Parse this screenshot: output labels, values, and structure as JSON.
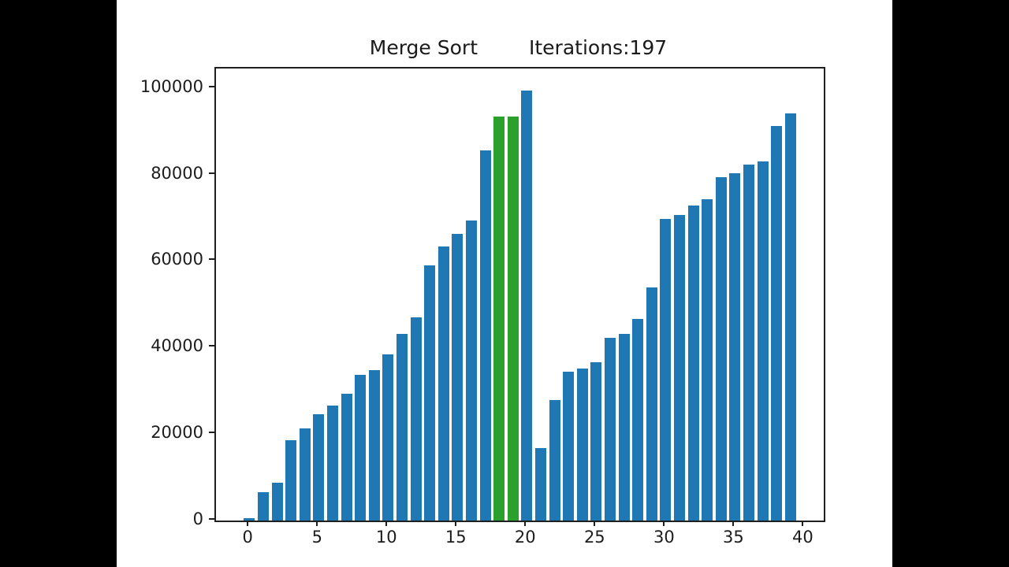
{
  "window": {
    "background_color": "#000000",
    "figure_background_color": "#ffffff"
  },
  "chart_data": {
    "type": "bar",
    "title": "Merge Sort",
    "iterations_label": "Iterations:197",
    "xlabel": "",
    "ylabel": "",
    "x": [
      0,
      1,
      2,
      3,
      4,
      5,
      6,
      7,
      8,
      9,
      10,
      11,
      12,
      13,
      14,
      15,
      16,
      17,
      18,
      19,
      20,
      21,
      22,
      23,
      24,
      25,
      26,
      27,
      28,
      29,
      30,
      31,
      32,
      33,
      34,
      35,
      36,
      37,
      38,
      39
    ],
    "values": [
      500,
      6500,
      8700,
      18600,
      21300,
      24600,
      26600,
      29300,
      33700,
      34800,
      38400,
      43100,
      47000,
      59000,
      63400,
      66300,
      69400,
      85600,
      93400,
      93400,
      99500,
      16800,
      27900,
      34400,
      35200,
      36600,
      42300,
      43200,
      46600,
      53900,
      69800,
      70700,
      72900,
      74300,
      79400,
      80300,
      82300,
      83100,
      91300,
      94200
    ],
    "bar_color": "#1f77b4",
    "highlight_color": "#2ca02c",
    "highlighted_indices": [
      18,
      19
    ],
    "xticks": [
      0,
      5,
      10,
      15,
      20,
      25,
      30,
      35,
      40
    ],
    "yticks": [
      0,
      20000,
      40000,
      60000,
      80000,
      100000
    ],
    "xlim": [
      -2.4,
      41.4
    ],
    "ylim": [
      0,
      104500
    ],
    "bar_width_units": 0.8,
    "grid": false,
    "legend_position": "none"
  }
}
